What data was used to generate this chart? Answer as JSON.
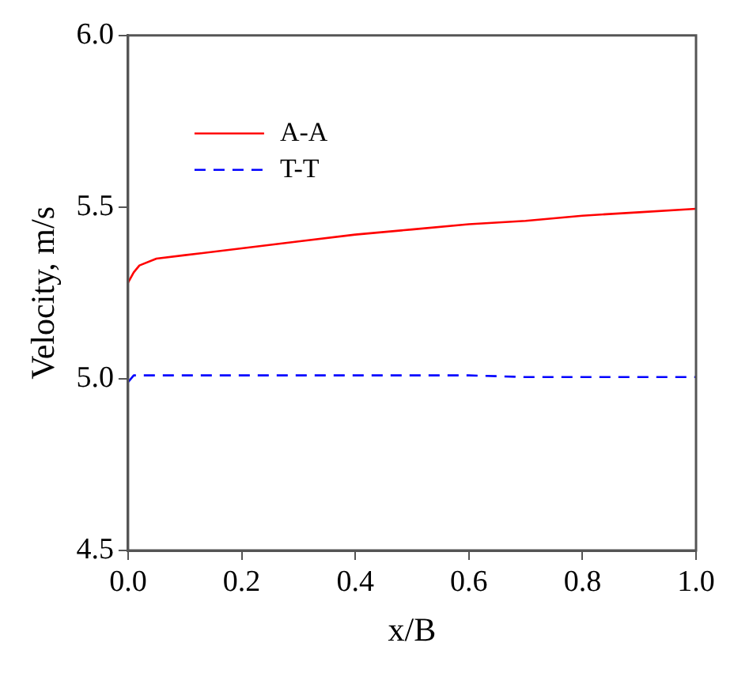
{
  "chart_data": {
    "type": "line",
    "xlabel": "x/B",
    "ylabel": "Velocity, m/s",
    "xlim": [
      0,
      1
    ],
    "xticks": [
      {
        "value": 0,
        "label": "0.0"
      },
      0.2,
      0.4,
      0.6,
      0.8,
      {
        "value": 1,
        "label": "1.0"
      }
    ],
    "ylim": [
      4.5,
      6
    ],
    "yticks": [
      4.5,
      {
        "value": 5,
        "label": "5.0"
      },
      5.5,
      {
        "value": 6,
        "label": "6.0"
      }
    ],
    "x": [
      0,
      0.01,
      0.02,
      0.05,
      0.1,
      0.2,
      0.3,
      0.4,
      0.5,
      0.6,
      0.7,
      0.8,
      0.9,
      1.0
    ],
    "series": [
      {
        "name": "A-A",
        "color": "#ff0000",
        "line_style": "solid",
        "values": [
          5.28,
          5.31,
          5.33,
          5.35,
          5.36,
          5.38,
          5.4,
          5.42,
          5.435,
          5.45,
          5.46,
          5.475,
          5.485,
          5.495
        ]
      },
      {
        "name": "T-T",
        "color": "#0000ff",
        "line_style": "dashed",
        "values": [
          4.99,
          5.01,
          5.01,
          5.01,
          5.01,
          5.01,
          5.01,
          5.01,
          5.01,
          5.01,
          5.005,
          5.005,
          5.005,
          5.005
        ]
      }
    ],
    "legend": "top left",
    "grid": false,
    "marker": "none"
  }
}
